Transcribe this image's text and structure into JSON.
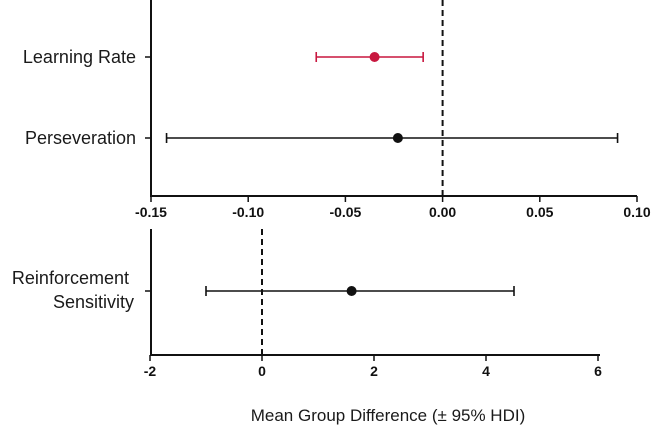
{
  "chart_data": [
    {
      "type": "forest",
      "title": "",
      "xlabel": "",
      "xlim": [
        -0.15,
        0.1
      ],
      "xticks": [
        -0.15,
        -0.1,
        -0.05,
        0.0,
        0.05,
        0.1
      ],
      "xtick_labels": [
        "-0.15",
        "-0.10",
        "-0.05",
        "0.00",
        "0.05",
        "0.10"
      ],
      "reference_line": 0,
      "rows": [
        {
          "label": "Learning Rate",
          "mean": -0.035,
          "low": -0.065,
          "high": -0.01,
          "highlight": true
        },
        {
          "label": "Perseveration",
          "mean": -0.023,
          "low": -0.142,
          "high": 0.09,
          "highlight": false
        }
      ]
    },
    {
      "type": "forest",
      "title": "",
      "xlabel": "Mean Group Difference (± 95% HDI)",
      "xlim": [
        -2,
        6
      ],
      "xticks": [
        -2,
        0,
        2,
        4,
        6
      ],
      "xtick_labels": [
        "-2",
        "0",
        "2",
        "4",
        "6"
      ],
      "reference_line": 0,
      "rows": [
        {
          "label_lines": [
            "Reinforcement",
            "Sensitivity"
          ],
          "mean": 1.6,
          "low": -1.0,
          "high": 4.5,
          "highlight": false
        }
      ]
    }
  ],
  "colors": {
    "highlight": "#c8173f",
    "default": "#111111"
  }
}
